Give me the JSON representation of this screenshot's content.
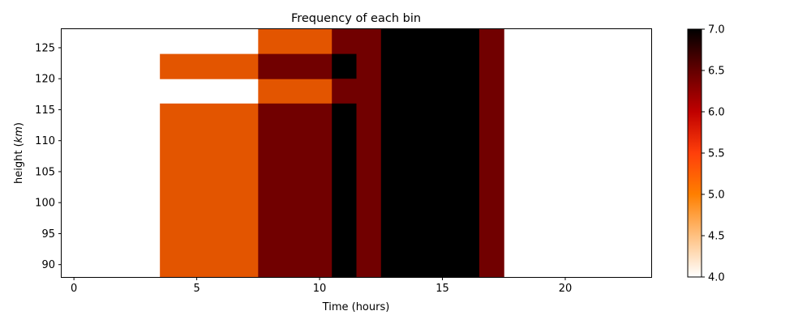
{
  "chart_data": {
    "type": "heatmap",
    "title": "Frequency of each bin",
    "xlabel": "Time (hours)",
    "ylabel_prefix": "height (",
    "ylabel_unit": "km",
    "ylabel_suffix": ")",
    "xlim": [
      -0.5,
      23.5
    ],
    "ylim": [
      88,
      128
    ],
    "x_ticks": [
      0,
      5,
      10,
      15,
      20
    ],
    "y_ticks": [
      90,
      95,
      100,
      105,
      110,
      115,
      120,
      125
    ],
    "colorbar": {
      "range": [
        4.0,
        7.0
      ],
      "ticks": [
        "4.0",
        "4.5",
        "5.0",
        "5.5",
        "6.0",
        "6.5",
        "7.0"
      ],
      "colormap": "gist_heat_r"
    },
    "cells": [
      {
        "x0": 3.5,
        "x1": 7.5,
        "y0": 88,
        "y1": 116,
        "value": 5
      },
      {
        "x0": 3.5,
        "x1": 7.5,
        "y0": 120,
        "y1": 124,
        "value": 5
      },
      {
        "x0": 7.5,
        "x1": 10.5,
        "y0": 124,
        "y1": 128,
        "value": 5
      },
      {
        "x0": 7.5,
        "x1": 10.5,
        "y0": 116,
        "y1": 120,
        "value": 5
      },
      {
        "x0": 7.5,
        "x1": 10.5,
        "y0": 120,
        "y1": 124,
        "value": 6
      },
      {
        "x0": 7.5,
        "x1": 10.5,
        "y0": 88,
        "y1": 116,
        "value": 6
      },
      {
        "x0": 10.5,
        "x1": 11.5,
        "y0": 124,
        "y1": 128,
        "value": 6
      },
      {
        "x0": 10.5,
        "x1": 11.5,
        "y0": 120,
        "y1": 124,
        "value": 7
      },
      {
        "x0": 10.5,
        "x1": 11.5,
        "y0": 116,
        "y1": 120,
        "value": 6
      },
      {
        "x0": 10.5,
        "x1": 11.5,
        "y0": 88,
        "y1": 116,
        "value": 7
      },
      {
        "x0": 11.5,
        "x1": 12.5,
        "y0": 88,
        "y1": 128,
        "value": 6
      },
      {
        "x0": 12.5,
        "x1": 16.5,
        "y0": 88,
        "y1": 128,
        "value": 7
      },
      {
        "x0": 16.5,
        "x1": 17.5,
        "y0": 88,
        "y1": 128,
        "value": 6
      }
    ]
  }
}
